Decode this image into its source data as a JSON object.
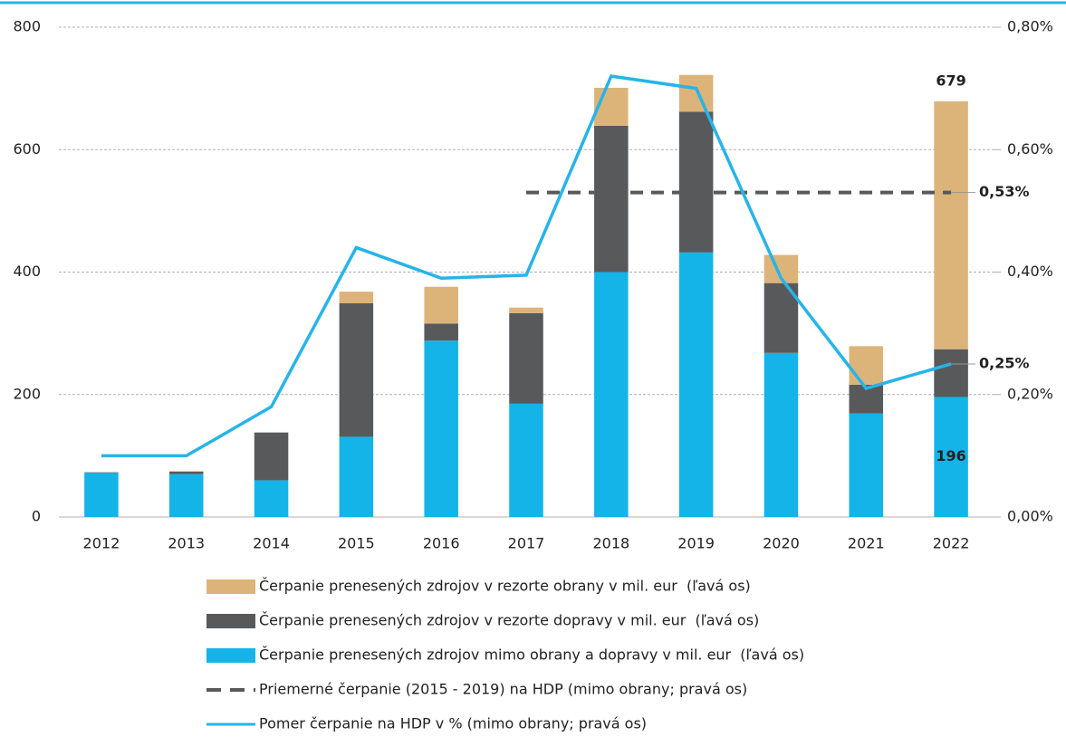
{
  "chart_data": {
    "type": "bar",
    "categories": [
      "2012",
      "2013",
      "2014",
      "2015",
      "2016",
      "2017",
      "2018",
      "2019",
      "2020",
      "2021",
      "2022"
    ],
    "series": [
      {
        "name": "Čerpanie prenesených zdrojov mimo obrany a dopravy v mil. eur  (ľavá os)",
        "type": "bar",
        "color": "#14b4e8",
        "values": [
          72,
          70,
          60,
          131,
          288,
          185,
          400,
          432,
          268,
          169,
          196
        ],
        "value_labels": [
          null,
          null,
          null,
          null,
          null,
          null,
          null,
          null,
          null,
          null,
          "196"
        ]
      },
      {
        "name": "Čerpanie prenesených zdrojov v rezorte dopravy v mil. eur  (ľavá os)",
        "type": "bar",
        "color": "#58595b",
        "values": [
          1,
          4,
          78,
          218,
          28,
          148,
          239,
          230,
          114,
          47,
          78
        ]
      },
      {
        "name": "Čerpanie prenesených zdrojov v rezorte obrany v mil. eur  (ľavá os)",
        "type": "bar",
        "color": "#dcb47a",
        "values": [
          0,
          1,
          0,
          19,
          60,
          9,
          62,
          60,
          46,
          63,
          405
        ]
      },
      {
        "name": "Priemerné čerpanie (2015 - 2019) na HDP (mimo obrany; pravá os)",
        "type": "line",
        "dash": true,
        "axis": "y2",
        "color": "#58595b",
        "values": [
          null,
          null,
          null,
          null,
          null,
          0.53,
          0.53,
          0.53,
          0.53,
          0.53,
          0.53
        ],
        "value_labels": [
          null,
          null,
          null,
          null,
          null,
          null,
          null,
          null,
          null,
          null,
          "0,53%"
        ]
      },
      {
        "name": "Pomer čerpanie na HDP v % (mimo obrany; pravá os)",
        "type": "line",
        "axis": "y2",
        "color": "#27b4e8",
        "values": [
          0.1,
          0.1,
          0.18,
          0.44,
          0.39,
          0.395,
          0.72,
          0.7,
          0.39,
          0.21,
          0.25
        ],
        "value_labels": [
          null,
          null,
          null,
          null,
          null,
          null,
          null,
          null,
          null,
          null,
          "0,25%"
        ]
      }
    ],
    "total_labels": [
      null,
      null,
      null,
      null,
      null,
      null,
      null,
      null,
      null,
      null,
      "679"
    ],
    "legend_order": [
      2,
      1,
      0,
      3,
      4
    ],
    "ylim": [
      0,
      800
    ],
    "yticks": [
      0,
      200,
      400,
      600,
      800
    ],
    "y2lim": [
      0,
      0.8
    ],
    "y2ticks": [
      {
        "value": 0,
        "label": "0,00%"
      },
      {
        "value": 0.2,
        "label": "0,20%"
      },
      {
        "value": 0.4,
        "label": "0,40%"
      },
      {
        "value": 0.6,
        "label": "0,60%"
      },
      {
        "value": 0.8,
        "label": "0,80%"
      }
    ],
    "grid": true
  }
}
